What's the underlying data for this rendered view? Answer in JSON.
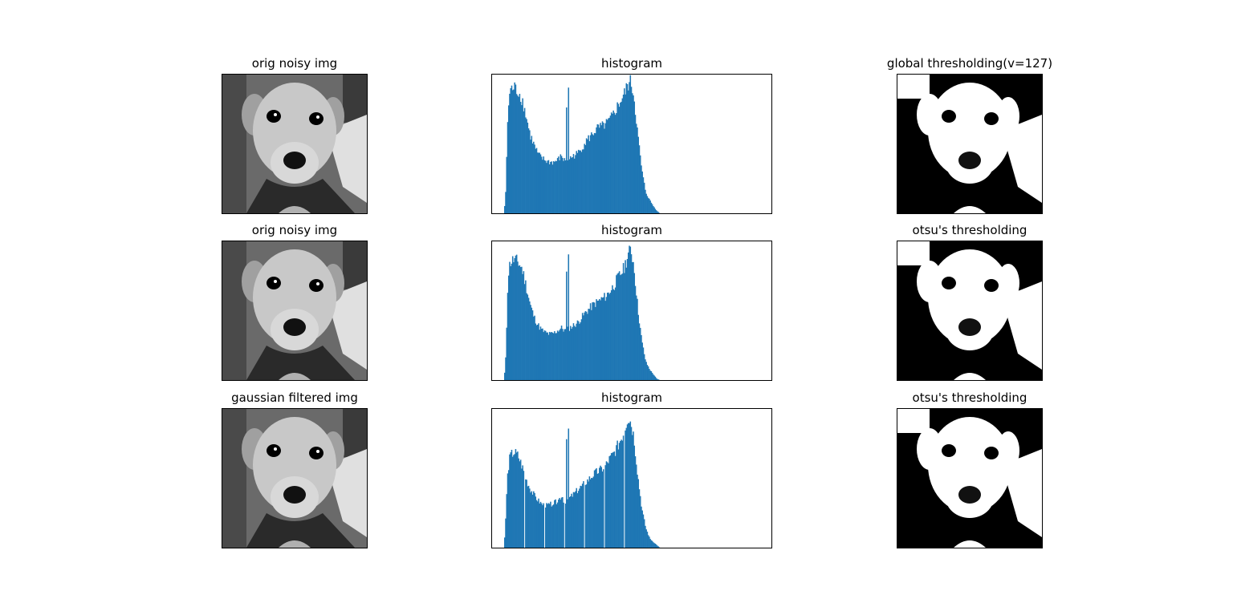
{
  "figure": {
    "background": "#ffffff"
  },
  "chart_data": [
    {
      "type": "image",
      "title": "orig noisy img",
      "image": "grayscale photograph of a dog (noisy)"
    },
    {
      "type": "bar",
      "title": "histogram",
      "color": "#1f77b4",
      "xlim": [
        0,
        256
      ],
      "envelope": [
        [
          0,
          0
        ],
        [
          2,
          0.22
        ],
        [
          3,
          0.6
        ],
        [
          4,
          0.8
        ],
        [
          6,
          0.94
        ],
        [
          10,
          0.96
        ],
        [
          14,
          0.93
        ],
        [
          18,
          0.87
        ],
        [
          22,
          0.74
        ],
        [
          26,
          0.6
        ],
        [
          30,
          0.52
        ],
        [
          34,
          0.45
        ],
        [
          38,
          0.42
        ],
        [
          42,
          0.4
        ],
        [
          46,
          0.39
        ],
        [
          50,
          0.39
        ],
        [
          54,
          0.41
        ],
        [
          58,
          0.44
        ],
        [
          60,
          0.4
        ],
        [
          62,
          0.41
        ],
        [
          66,
          0.42
        ],
        [
          70,
          0.44
        ],
        [
          74,
          0.46
        ],
        [
          78,
          0.5
        ],
        [
          82,
          0.55
        ],
        [
          86,
          0.58
        ],
        [
          90,
          0.62
        ],
        [
          94,
          0.65
        ],
        [
          98,
          0.66
        ],
        [
          102,
          0.68
        ],
        [
          106,
          0.71
        ],
        [
          110,
          0.76
        ],
        [
          114,
          0.82
        ],
        [
          120,
          0.9
        ],
        [
          124,
          0.98
        ],
        [
          127,
          1.0
        ],
        [
          130,
          0.9
        ],
        [
          134,
          0.6
        ],
        [
          138,
          0.33
        ],
        [
          142,
          0.16
        ],
        [
          146,
          0.1
        ],
        [
          150,
          0.05
        ],
        [
          153,
          0.02
        ],
        [
          156,
          0
        ]
      ],
      "spikes": [
        [
          62,
          0.8
        ],
        [
          64,
          0.95
        ]
      ]
    },
    {
      "type": "image",
      "title": "global thresholding(v=127)",
      "image": "binary black and white thresholded dog image"
    },
    {
      "type": "image",
      "title": "orig noisy img",
      "image": "grayscale photograph of a dog (noisy)"
    },
    {
      "type": "bar",
      "title": "histogram",
      "color": "#1f77b4",
      "xlim": [
        0,
        256
      ],
      "envelope": [
        [
          0,
          0
        ],
        [
          2,
          0.22
        ],
        [
          3,
          0.6
        ],
        [
          4,
          0.8
        ],
        [
          6,
          0.9
        ],
        [
          10,
          0.92
        ],
        [
          14,
          0.9
        ],
        [
          18,
          0.85
        ],
        [
          22,
          0.72
        ],
        [
          26,
          0.58
        ],
        [
          30,
          0.48
        ],
        [
          34,
          0.42
        ],
        [
          38,
          0.38
        ],
        [
          42,
          0.36
        ],
        [
          46,
          0.35
        ],
        [
          50,
          0.36
        ],
        [
          54,
          0.38
        ],
        [
          58,
          0.4
        ],
        [
          60,
          0.38
        ],
        [
          62,
          0.38
        ],
        [
          66,
          0.4
        ],
        [
          70,
          0.42
        ],
        [
          74,
          0.44
        ],
        [
          78,
          0.48
        ],
        [
          82,
          0.52
        ],
        [
          86,
          0.55
        ],
        [
          90,
          0.58
        ],
        [
          94,
          0.6
        ],
        [
          98,
          0.62
        ],
        [
          102,
          0.64
        ],
        [
          106,
          0.68
        ],
        [
          110,
          0.72
        ],
        [
          114,
          0.78
        ],
        [
          120,
          0.85
        ],
        [
          124,
          0.95
        ],
        [
          127,
          1.0
        ],
        [
          130,
          0.88
        ],
        [
          134,
          0.55
        ],
        [
          138,
          0.3
        ],
        [
          142,
          0.14
        ],
        [
          146,
          0.08
        ],
        [
          150,
          0.04
        ],
        [
          153,
          0.01
        ],
        [
          156,
          0
        ]
      ],
      "spikes": [
        [
          62,
          0.82
        ],
        [
          64,
          0.95
        ]
      ]
    },
    {
      "type": "image",
      "title": "otsu's thresholding",
      "image": "binary black and white thresholded dog image"
    },
    {
      "type": "image",
      "title": "gaussian filtered img",
      "image": "smoothed grayscale photograph of a dog"
    },
    {
      "type": "bar",
      "title": "histogram",
      "color": "#1f77b4",
      "xlim": [
        0,
        256
      ],
      "envelope": [
        [
          0,
          0
        ],
        [
          2,
          0.3
        ],
        [
          3,
          0.5
        ],
        [
          4,
          0.6
        ],
        [
          6,
          0.7
        ],
        [
          10,
          0.73
        ],
        [
          14,
          0.7
        ],
        [
          18,
          0.62
        ],
        [
          22,
          0.52
        ],
        [
          26,
          0.45
        ],
        [
          30,
          0.4
        ],
        [
          34,
          0.36
        ],
        [
          38,
          0.33
        ],
        [
          42,
          0.32
        ],
        [
          46,
          0.33
        ],
        [
          50,
          0.34
        ],
        [
          54,
          0.36
        ],
        [
          58,
          0.4
        ],
        [
          60,
          0.35
        ],
        [
          62,
          0.36
        ],
        [
          66,
          0.38
        ],
        [
          70,
          0.41
        ],
        [
          74,
          0.44
        ],
        [
          78,
          0.47
        ],
        [
          82,
          0.5
        ],
        [
          86,
          0.53
        ],
        [
          90,
          0.56
        ],
        [
          94,
          0.58
        ],
        [
          98,
          0.6
        ],
        [
          102,
          0.63
        ],
        [
          106,
          0.68
        ],
        [
          110,
          0.72
        ],
        [
          114,
          0.78
        ],
        [
          120,
          0.88
        ],
        [
          124,
          1.0
        ],
        [
          127,
          0.96
        ],
        [
          130,
          0.85
        ],
        [
          134,
          0.55
        ],
        [
          138,
          0.3
        ],
        [
          142,
          0.15
        ],
        [
          146,
          0.07
        ],
        [
          150,
          0.04
        ],
        [
          153,
          0.02
        ],
        [
          156,
          0
        ]
      ],
      "spikes": [
        [
          62,
          0.82
        ],
        [
          64,
          0.9
        ]
      ],
      "gaps": [
        20,
        40,
        60,
        80,
        100,
        120
      ]
    },
    {
      "type": "image",
      "title": "otsu's thresholding",
      "image": "binary black and white thresholded dog image"
    }
  ]
}
